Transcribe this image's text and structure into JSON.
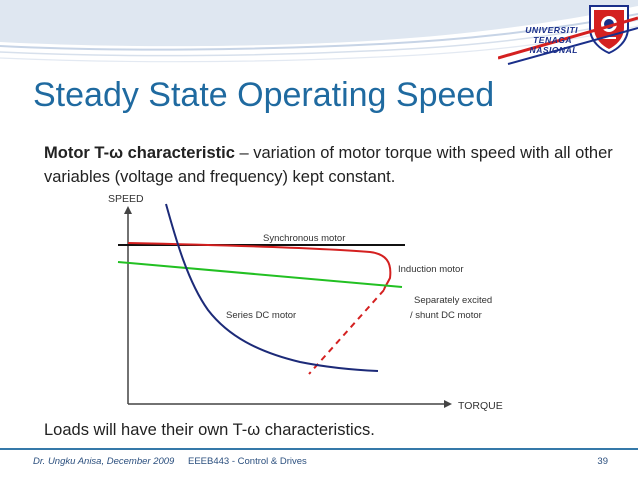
{
  "logo": {
    "line1": "UNIVERSITI",
    "line2": "TENAGA",
    "line3": "NASIONAL"
  },
  "slide": {
    "title": "Steady State Operating Speed",
    "intro_bold": "Motor T-ω characteristic",
    "intro_rest": " – variation of motor torque with speed with all other variables (voltage and frequency) kept constant.",
    "loads_text": "Loads will have their own T-ω characteristics."
  },
  "chart_data": {
    "type": "line",
    "xlabel": "TORQUE",
    "ylabel": "SPEED",
    "series": [
      {
        "name": "Synchronous motor",
        "color": "#111111"
      },
      {
        "name": "Induction motor",
        "color": "#d42020"
      },
      {
        "name": "Separately excited / shunt  DC motor",
        "color": "#22c022"
      },
      {
        "name": "Series DC motor",
        "color": "#1c2a78"
      }
    ],
    "labels": {
      "synchronous": "Synchronous motor",
      "induction": "Induction motor",
      "separately_1": "Separately excited",
      "separately_2": "/ shunt  DC motor",
      "series_dc": "Series DC motor"
    },
    "grid": false
  },
  "footer": {
    "author": "Dr. Ungku Anisa, December 2009",
    "course": "EEEB443 - Control & Drives",
    "page": "39"
  },
  "colors": {
    "title": "#1f6aa0",
    "band": "#1f6aa0",
    "accent_red": "#d42020",
    "accent_green": "#22c022",
    "accent_navy": "#1c2a78"
  }
}
